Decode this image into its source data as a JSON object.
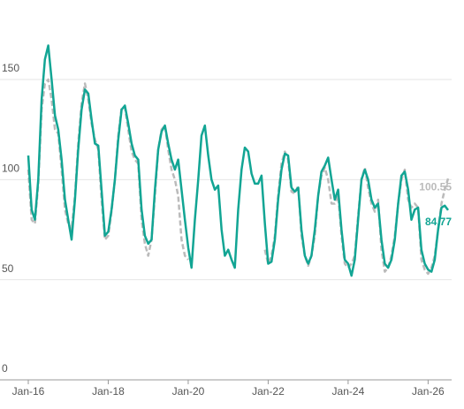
{
  "chart_data": {
    "type": "line",
    "x": [
      "Jan-16",
      "Feb-16",
      "Mar-16",
      "Apr-16",
      "May-16",
      "Jun-16",
      "Jul-16",
      "Aug-16",
      "Sep-16",
      "Oct-16",
      "Nov-16",
      "Dec-16",
      "Jan-17",
      "Feb-17",
      "Mar-17",
      "Apr-17",
      "May-17",
      "Jun-17",
      "Jul-17",
      "Aug-17",
      "Sep-17",
      "Oct-17",
      "Nov-17",
      "Dec-17",
      "Jan-18",
      "Feb-18",
      "Mar-18",
      "Apr-18",
      "May-18",
      "Jun-18",
      "Jul-18",
      "Aug-18",
      "Sep-18",
      "Oct-18",
      "Nov-18",
      "Dec-18",
      "Jan-19",
      "Feb-19",
      "Mar-19",
      "Apr-19",
      "May-19",
      "Jun-19",
      "Jul-19",
      "Aug-19",
      "Sep-19",
      "Oct-19",
      "Nov-19",
      "Dec-19",
      "Jan-20",
      "Feb-20",
      "Mar-20",
      "Apr-20",
      "May-20",
      "Jun-20",
      "Jul-20",
      "Aug-20",
      "Sep-20",
      "Oct-20",
      "Nov-20",
      "Dec-20",
      "Jan-21",
      "Feb-21",
      "Mar-21",
      "Apr-21",
      "May-21",
      "Jun-21",
      "Jul-21",
      "Aug-21",
      "Sep-21",
      "Oct-21",
      "Nov-21",
      "Dec-21",
      "Jan-22",
      "Feb-22",
      "Mar-22",
      "Apr-22",
      "May-22",
      "Jun-22",
      "Jul-22",
      "Aug-22",
      "Sep-22",
      "Oct-22",
      "Nov-22",
      "Dec-22",
      "Jan-23",
      "Feb-23",
      "Mar-23",
      "Apr-23",
      "May-23",
      "Jun-23",
      "Jul-23",
      "Aug-23",
      "Sep-23",
      "Oct-23",
      "Nov-23",
      "Dec-23",
      "Jan-24",
      "Feb-24",
      "Mar-24",
      "Apr-24",
      "May-24",
      "Jun-24",
      "Jul-24",
      "Aug-24",
      "Sep-24",
      "Oct-24",
      "Nov-24",
      "Dec-24",
      "Jan-25",
      "Feb-25",
      "Mar-25",
      "Apr-25",
      "May-25",
      "Jun-25",
      "Jul-25",
      "Aug-25",
      "Sep-25",
      "Oct-25",
      "Nov-25",
      "Dec-25",
      "Jan-26",
      "Feb-26",
      "Mar-26",
      "Apr-26",
      "May-26",
      "Jun-26",
      "Jul-26"
    ],
    "series": [
      {
        "color": "#bbbbbb",
        "dashed": true,
        "values": [
          105,
          80,
          78,
          98,
          135,
          148,
          150,
          140,
          125,
          123,
          105,
          85,
          78,
          75,
          92,
          118,
          138,
          148,
          140,
          128,
          120,
          115,
          90,
          70,
          72,
          84,
          100,
          122,
          136,
          136,
          125,
          114,
          110,
          108,
          80,
          68,
          62,
          70,
          92,
          115,
          125,
          127,
          115,
          105,
          100,
          92,
          70,
          62,
          60,
          null,
          null,
          null,
          null,
          null,
          null,
          null,
          null,
          null,
          null,
          null,
          null,
          null,
          null,
          null,
          null,
          null,
          null,
          null,
          null,
          null,
          null,
          65,
          58,
          62,
          72,
          92,
          108,
          114,
          110,
          94,
          93,
          97,
          72,
          62,
          57,
          62,
          72,
          92,
          102,
          106,
          100,
          88,
          88,
          92,
          72,
          58,
          56,
          58,
          62,
          82,
          100,
          106,
          96,
          88,
          84,
          90,
          65,
          54,
          56,
          62,
          72,
          88,
          100,
          105,
          90,
          86,
          88,
          86,
          60,
          55,
          53,
          56,
          62,
          75,
          88,
          95,
          100.55
        ]
      },
      {
        "color": "#12a594",
        "dashed": false,
        "values": [
          112,
          85,
          80,
          100,
          140,
          160,
          167,
          150,
          132,
          125,
          110,
          90,
          80,
          70,
          90,
          115,
          135,
          145,
          143,
          130,
          118,
          117,
          95,
          72,
          74,
          85,
          100,
          120,
          135,
          137,
          128,
          118,
          112,
          110,
          85,
          72,
          68,
          70,
          95,
          115,
          124,
          127,
          118,
          110,
          105,
          110,
          95,
          80,
          66,
          56,
          80,
          100,
          122,
          127,
          112,
          100,
          95,
          97,
          75,
          62,
          65,
          60,
          56,
          85,
          105,
          116,
          114,
          103,
          98,
          98,
          102,
          78,
          58,
          59,
          70,
          90,
          105,
          113,
          112,
          96,
          94,
          96,
          75,
          62,
          58,
          62,
          75,
          92,
          104,
          107,
          111,
          100,
          90,
          95,
          75,
          60,
          58,
          52,
          60,
          80,
          100,
          105,
          100,
          90,
          86,
          88,
          70,
          58,
          56,
          60,
          70,
          88,
          102,
          104,
          95,
          80,
          85,
          86,
          65,
          58,
          55,
          54,
          60,
          75,
          86,
          87,
          84.77
        ]
      }
    ],
    "xticks": [
      "Jan-16",
      "Jan-18",
      "Jan-20",
      "Jan-22",
      "Jan-24",
      "Jan-26"
    ],
    "ylim": [
      0,
      180
    ],
    "yticks": [
      0,
      50,
      100,
      150
    ],
    "grid": true
  }
}
